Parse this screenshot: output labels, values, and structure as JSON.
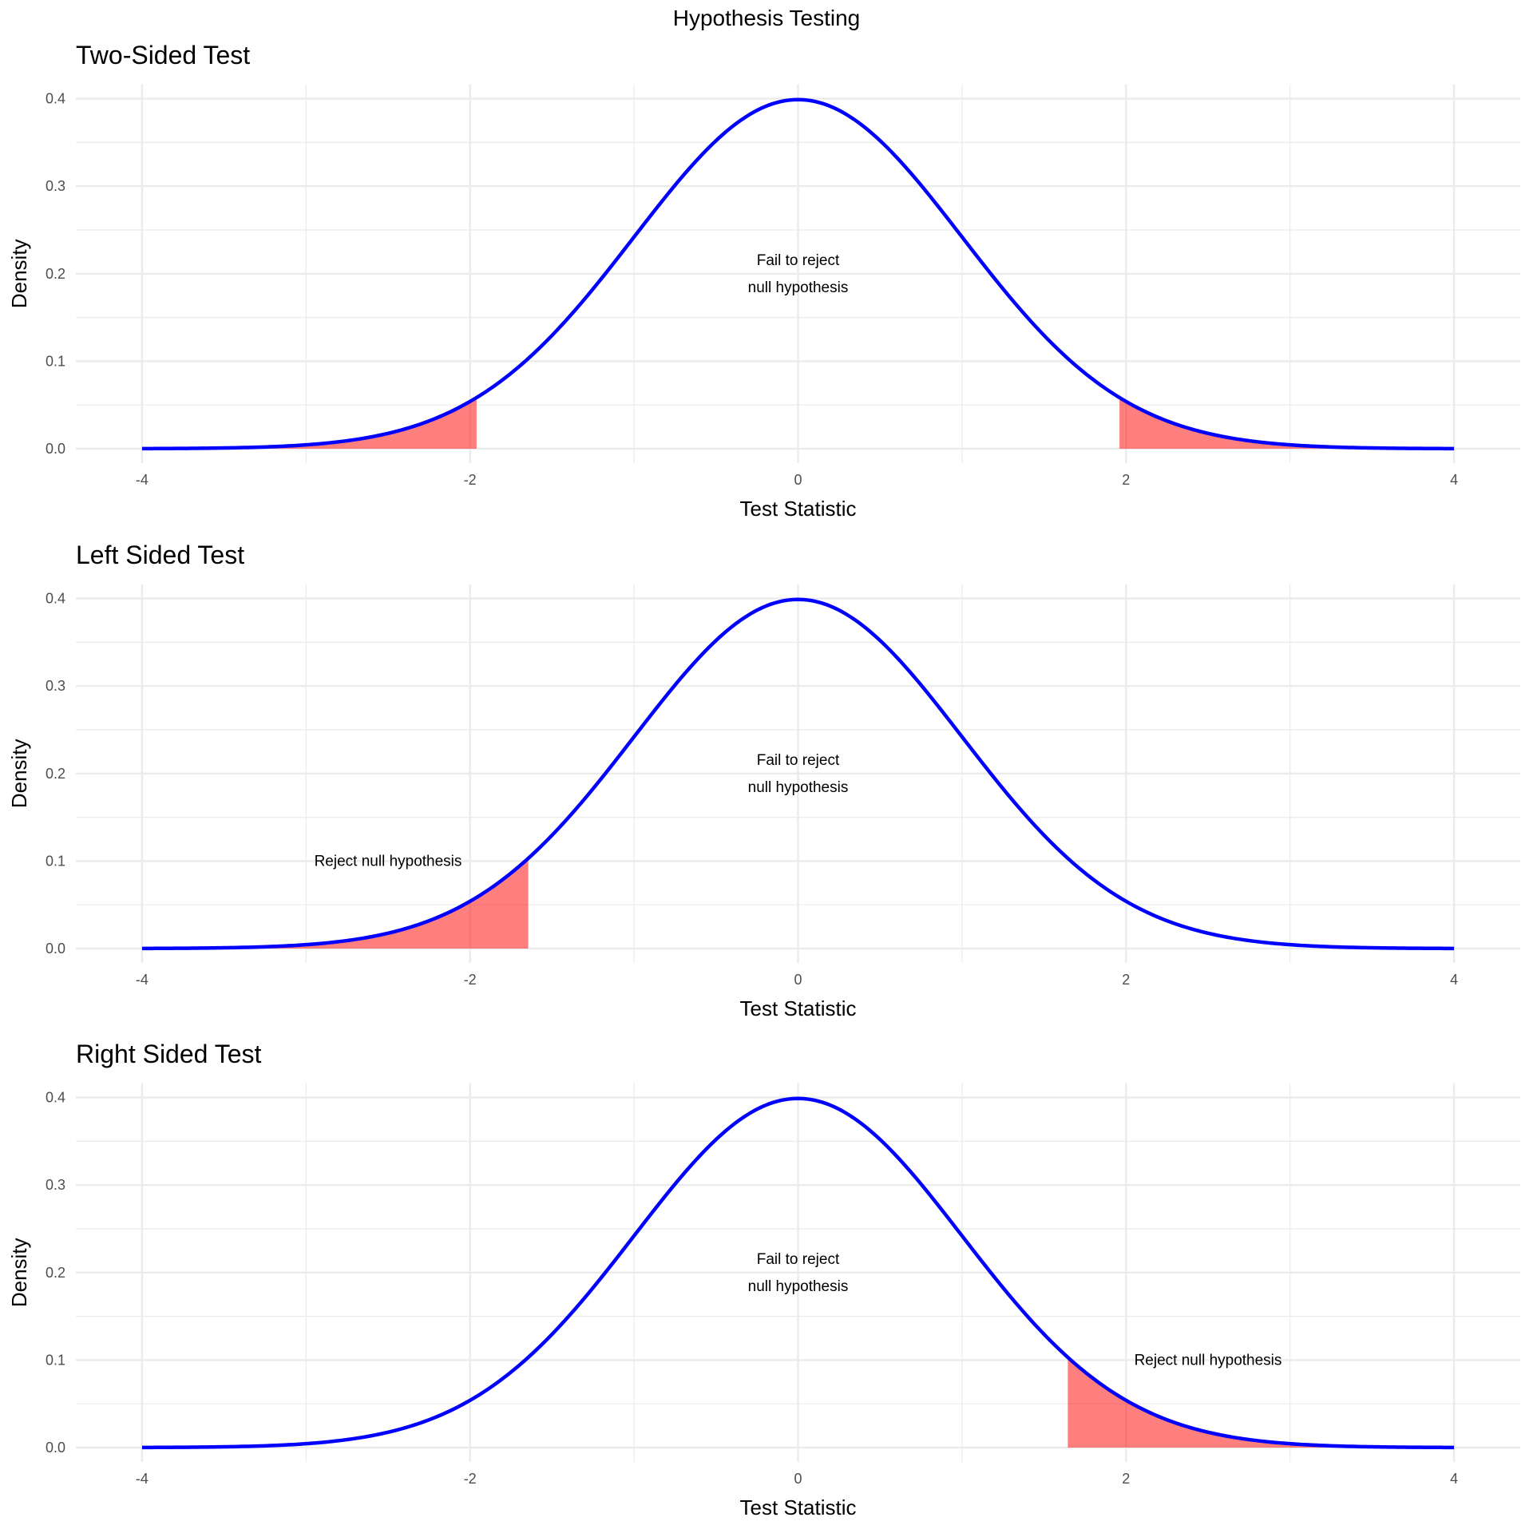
{
  "title": "Hypothesis Testing",
  "colors": {
    "curve": "#0000ff",
    "rejection_fill": "#ff0000",
    "rejection_alpha": 0.5,
    "grid": "#ebebeb"
  },
  "chart_data": [
    {
      "type": "area",
      "title": "Two-Sided Test",
      "xlabel": "Test Statistic",
      "ylabel": "Density",
      "xlim": [
        -4,
        4
      ],
      "ylim": [
        0,
        0.4
      ],
      "x_ticks": [
        "-4",
        "-2",
        "0",
        "2",
        "4"
      ],
      "y_ticks": [
        "0.0",
        "0.1",
        "0.2",
        "0.3",
        "0.4"
      ],
      "grid": true,
      "curve": "standard normal density",
      "rejection_regions": [
        [
          -4,
          -1.96
        ],
        [
          1.96,
          4
        ]
      ],
      "annotations": [
        {
          "text_lines": [
            "Fail to reject",
            "null hypothesis"
          ],
          "x": 0,
          "y": 0.2
        }
      ]
    },
    {
      "type": "area",
      "title": "Left Sided Test",
      "xlabel": "Test Statistic",
      "ylabel": "Density",
      "xlim": [
        -4,
        4
      ],
      "ylim": [
        0,
        0.4
      ],
      "x_ticks": [
        "-4",
        "-2",
        "0",
        "2",
        "4"
      ],
      "y_ticks": [
        "0.0",
        "0.1",
        "0.2",
        "0.3",
        "0.4"
      ],
      "grid": true,
      "curve": "standard normal density",
      "rejection_regions": [
        [
          -4,
          -1.645
        ]
      ],
      "annotations": [
        {
          "text_lines": [
            "Fail to reject",
            "null hypothesis"
          ],
          "x": 0,
          "y": 0.2
        },
        {
          "text_lines": [
            "Reject null hypothesis"
          ],
          "x": -2.5,
          "y": 0.1
        }
      ]
    },
    {
      "type": "area",
      "title": "Right Sided Test",
      "xlabel": "Test Statistic",
      "ylabel": "Density",
      "xlim": [
        -4,
        4
      ],
      "ylim": [
        0,
        0.4
      ],
      "x_ticks": [
        "-4",
        "-2",
        "0",
        "2",
        "4"
      ],
      "y_ticks": [
        "0.0",
        "0.1",
        "0.2",
        "0.3",
        "0.4"
      ],
      "grid": true,
      "curve": "standard normal density",
      "rejection_regions": [
        [
          1.645,
          4
        ]
      ],
      "annotations": [
        {
          "text_lines": [
            "Fail to reject",
            "null hypothesis"
          ],
          "x": 0,
          "y": 0.2
        },
        {
          "text_lines": [
            "Reject null hypothesis"
          ],
          "x": 2.5,
          "y": 0.1
        }
      ]
    }
  ]
}
